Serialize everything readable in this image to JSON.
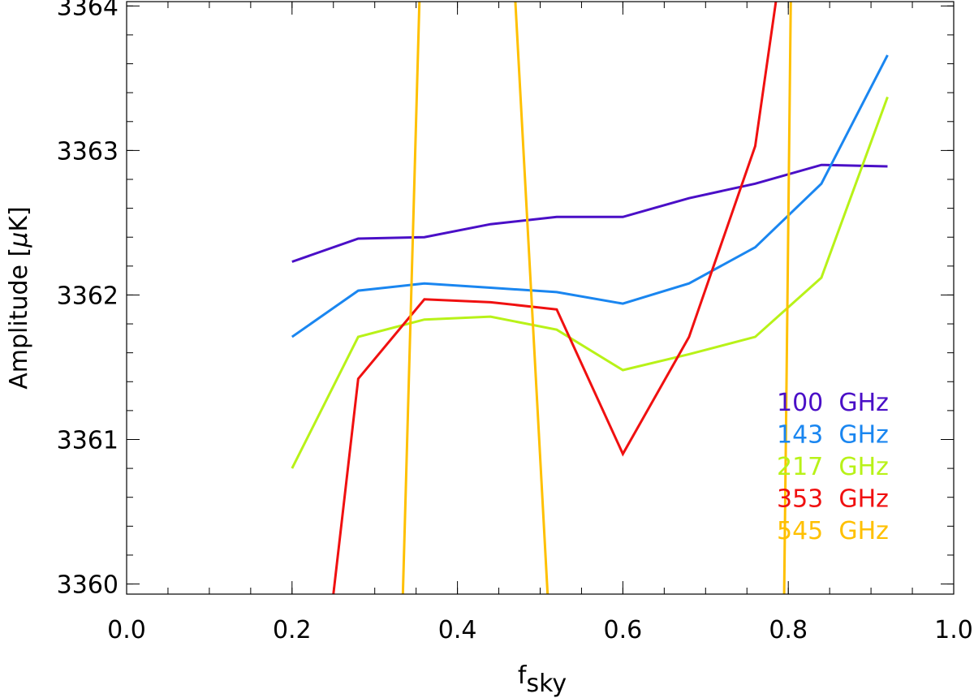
{
  "chart_data": {
    "type": "line",
    "xlabel_main": "f",
    "xlabel_sub": "sky",
    "ylabel_main": "Amplitude ",
    "ylabel_bracket_open": "[",
    "ylabel_mu": "μ",
    "ylabel_unit": "K",
    "ylabel_bracket_close": "]",
    "xlim": [
      0.0,
      1.0
    ],
    "ylim": [
      3359.93,
      3364.03
    ],
    "xticks": [
      "0.0",
      "0.2",
      "0.4",
      "0.6",
      "0.8",
      "1.0"
    ],
    "xtick_values": [
      0.0,
      0.2,
      0.4,
      0.6,
      0.8,
      1.0
    ],
    "yticks": [
      "3360",
      "3361",
      "3362",
      "3363",
      "3364"
    ],
    "ytick_values": [
      3360,
      3361,
      3362,
      3363,
      3364
    ],
    "x_minor_step": 0.05,
    "y_minor_step": 0.2,
    "legend_position": "right",
    "series": [
      {
        "name": "100  GHz",
        "color": "#4a0fc7",
        "x": [
          0.2,
          0.28,
          0.36,
          0.44,
          0.52,
          0.6,
          0.68,
          0.76,
          0.84,
          0.92
        ],
        "y": [
          3362.23,
          3362.39,
          3362.4,
          3362.49,
          3362.54,
          3362.54,
          3362.67,
          3362.77,
          3362.9,
          3362.89
        ]
      },
      {
        "name": "143  GHz",
        "color": "#1a86f0",
        "x": [
          0.2,
          0.28,
          0.36,
          0.44,
          0.52,
          0.6,
          0.68,
          0.76,
          0.84,
          0.92
        ],
        "y": [
          3361.71,
          3362.03,
          3362.08,
          3362.05,
          3362.02,
          3361.94,
          3362.08,
          3362.33,
          3362.77,
          3363.66
        ]
      },
      {
        "name": "217  GHz",
        "color": "#b8f218",
        "x": [
          0.2,
          0.28,
          0.36,
          0.44,
          0.52,
          0.6,
          0.68,
          0.76,
          0.84,
          0.92
        ],
        "y": [
          3360.8,
          3361.71,
          3361.83,
          3361.85,
          3361.76,
          3361.48,
          3361.59,
          3361.71,
          3362.12,
          3363.37
        ]
      },
      {
        "name": "353  GHz",
        "color": "#f01010",
        "x": [
          0.25,
          0.28,
          0.36,
          0.44,
          0.52,
          0.6,
          0.68,
          0.76,
          0.785
        ],
        "y": [
          3359.93,
          3361.42,
          3361.97,
          3361.95,
          3361.9,
          3360.9,
          3361.71,
          3363.03,
          3364.03
        ]
      },
      {
        "name": "545  GHz",
        "color": "#ffc000",
        "x": [
          0.334,
          0.354,
          null,
          0.47,
          0.509,
          null,
          0.795,
          0.803
        ],
        "y": [
          3359.93,
          3364.03,
          null,
          3364.03,
          3359.93,
          null,
          3359.93,
          3364.03
        ]
      }
    ]
  }
}
